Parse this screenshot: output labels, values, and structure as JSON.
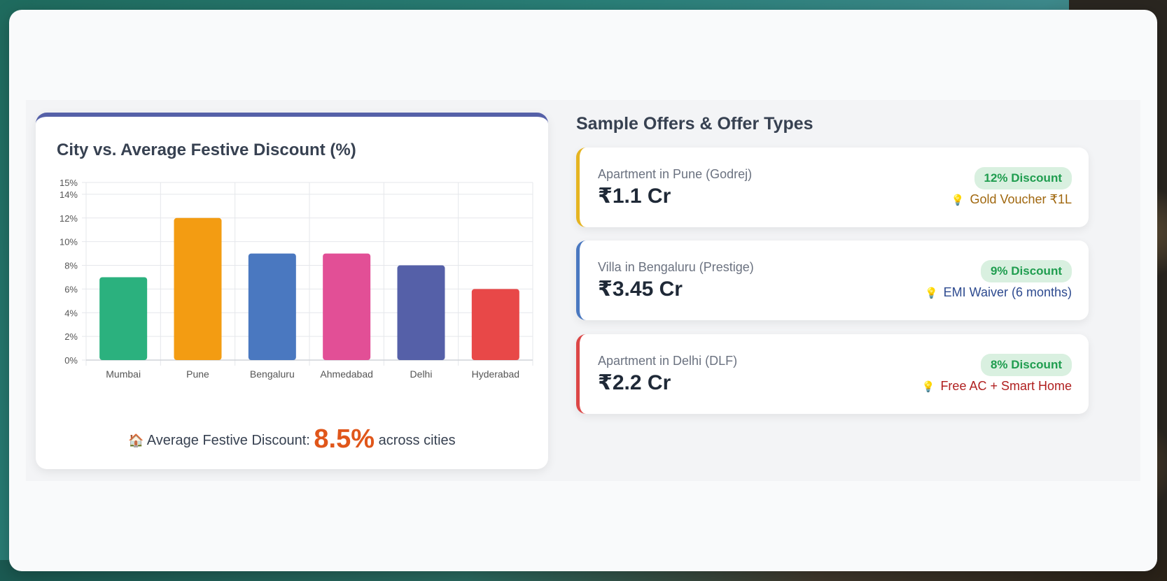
{
  "chart_data": {
    "type": "bar",
    "title": "City vs. Average Festive Discount (%)",
    "categories": [
      "Mumbai",
      "Pune",
      "Bengaluru",
      "Ahmedabad",
      "Delhi",
      "Hyderabad"
    ],
    "values": [
      7,
      12,
      9,
      9,
      8,
      6
    ],
    "colors": [
      "#2bb17e",
      "#f39c12",
      "#4a78c0",
      "#e24f96",
      "#5560a8",
      "#e84848"
    ],
    "ylim": [
      0,
      15
    ],
    "yticks": [
      "0%",
      "2%",
      "4%",
      "6%",
      "8%",
      "10%",
      "12%",
      "14%",
      "15%"
    ],
    "ytick_values": [
      0,
      2,
      4,
      6,
      8,
      10,
      12,
      14,
      15
    ],
    "grid": true
  },
  "summary": {
    "prefix": "Average Festive Discount:",
    "value": "8.5%",
    "suffix": "across cities",
    "icon": "house-icon"
  },
  "offers": {
    "title": "Sample Offers & Offer Types",
    "items": [
      {
        "name": "Apartment in Pune (Godrej)",
        "price": "₹1.1 Cr",
        "badge": "12% Discount",
        "perk": "Gold Voucher ₹1L",
        "accent": "#e5b421",
        "perk_color": "#a0670e",
        "icon": "bulb-icon"
      },
      {
        "name": "Villa in Bengaluru (Prestige)",
        "price": "₹3.45 Cr",
        "badge": "9% Discount",
        "perk": "EMI Waiver (6 months)",
        "accent": "#4a78c0",
        "perk_color": "#2d4a8f",
        "icon": "bulb-icon"
      },
      {
        "name": "Apartment in Delhi (DLF)",
        "price": "₹2.2 Cr",
        "badge": "8% Discount",
        "perk": "Free AC + Smart Home",
        "accent": "#dc4646",
        "perk_color": "#b02020",
        "icon": "bulb-icon"
      }
    ]
  }
}
